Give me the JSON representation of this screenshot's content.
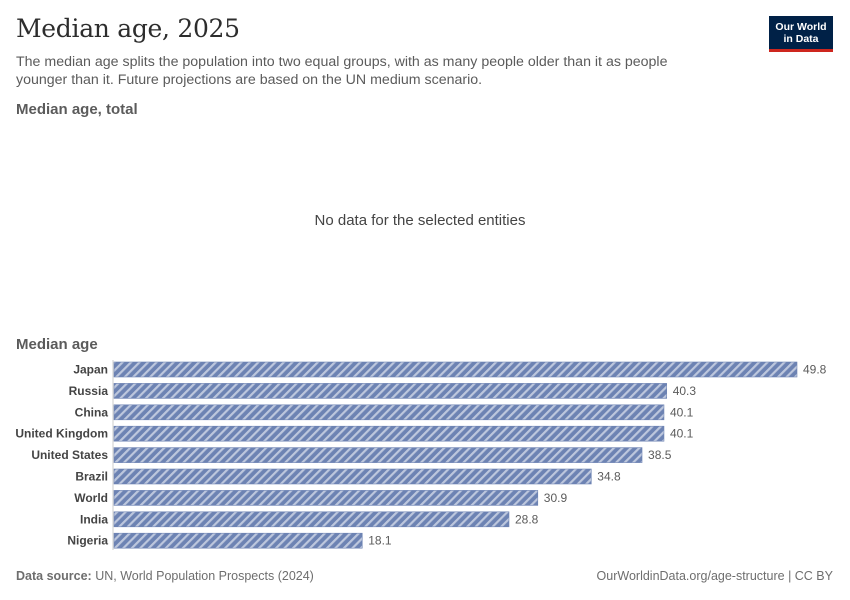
{
  "header": {
    "title": "Median age, 2025",
    "subtitle": "The median age splits the population into two equal groups, with as many people older than it as people younger than it. Future projections are based on the UN medium scenario.",
    "logo_line1": "Our World",
    "logo_line2": "in Data"
  },
  "panel_total": {
    "title": "Median age, total",
    "empty_message": "No data for the selected entities"
  },
  "panel_median": {
    "title": "Median age"
  },
  "colors": {
    "bar": "#6d83b3",
    "bar_stripe": "#ffffff",
    "label": "#444444",
    "value": "#5b5b5b"
  },
  "chart_data": {
    "type": "bar",
    "orientation": "horizontal",
    "title": "Median age",
    "categories": [
      "Japan",
      "Russia",
      "China",
      "United Kingdom",
      "United States",
      "Brazil",
      "World",
      "India",
      "Nigeria"
    ],
    "values": [
      49.8,
      40.3,
      40.1,
      40.1,
      38.5,
      34.8,
      30.9,
      28.8,
      18.1
    ],
    "value_labels": [
      "49.8",
      "40.3",
      "40.1",
      "40.1",
      "38.5",
      "34.8",
      "30.9",
      "28.8",
      "18.1"
    ],
    "xlim": [
      0,
      49.8
    ],
    "grid": false,
    "legend": "none"
  },
  "footer": {
    "source_label": "Data source:",
    "source_text": "UN, World Population Prospects (2024)",
    "credit": "OurWorldinData.org/age-structure | CC BY"
  }
}
